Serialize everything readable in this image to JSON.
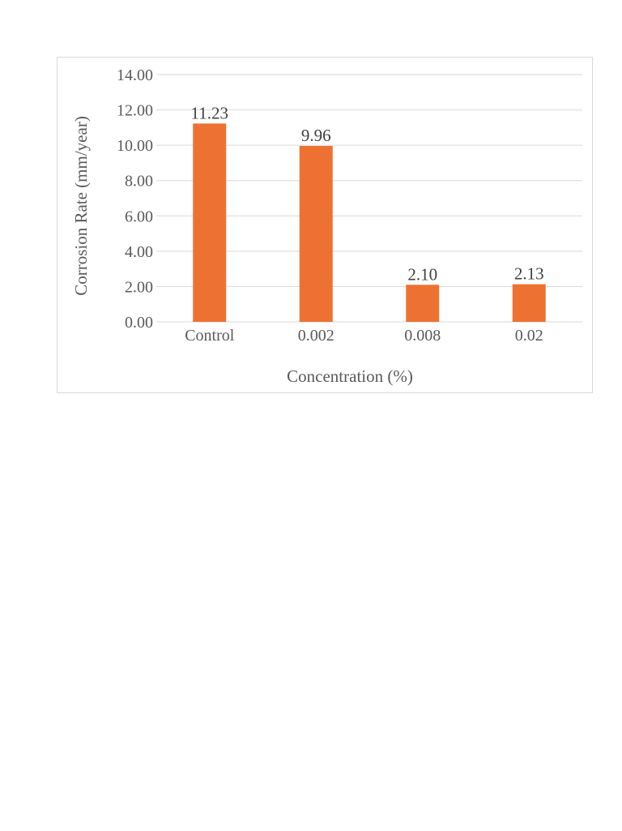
{
  "chart_data": {
    "type": "bar",
    "title": "",
    "xlabel": "Concentration (%)",
    "ylabel": "Corrosion Rate (mm/year)",
    "categories": [
      "Control",
      "0.002",
      "0.008",
      "0.02"
    ],
    "values": [
      11.23,
      9.96,
      2.1,
      2.13
    ],
    "value_labels": [
      "11.23",
      "9.96",
      "2.10",
      "2.13"
    ],
    "ylim": [
      0,
      14
    ],
    "yticks": [
      "0.00",
      "2.00",
      "4.00",
      "6.00",
      "8.00",
      "10.00",
      "12.00",
      "14.00"
    ],
    "grid": true,
    "legend": "none",
    "bar_color": "#ED7231",
    "grid_color": "#D9D9D9"
  }
}
